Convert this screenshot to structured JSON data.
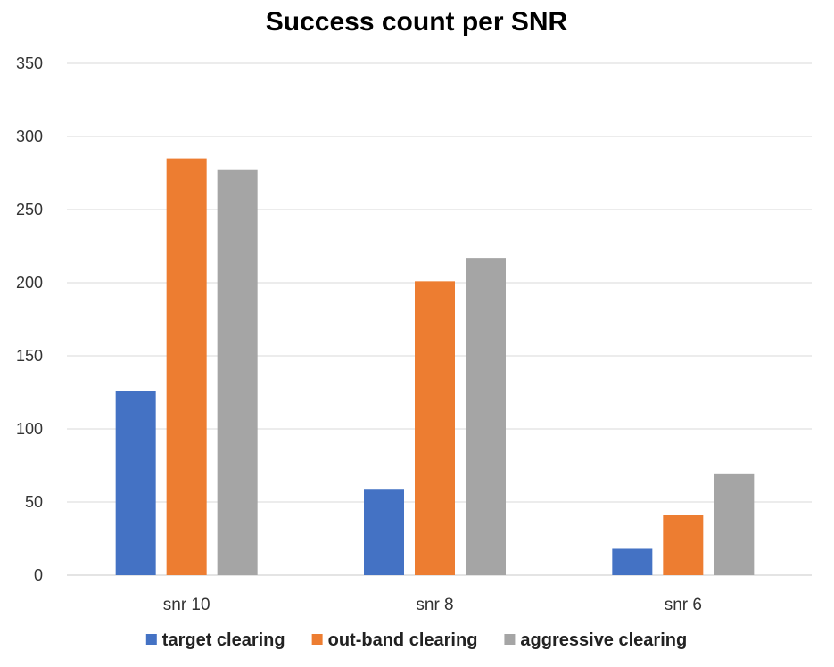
{
  "chart_data": {
    "type": "bar",
    "title": "Success count per SNR",
    "xlabel": "",
    "ylabel": "",
    "categories": [
      "snr 10",
      "snr 8",
      "snr 6"
    ],
    "series": [
      {
        "name": "target clearing",
        "values": [
          126,
          59,
          18
        ],
        "color": "#4472C4"
      },
      {
        "name": "out-band clearing",
        "values": [
          285,
          201,
          41
        ],
        "color": "#ED7D31"
      },
      {
        "name": "aggressive clearing",
        "values": [
          277,
          217,
          69
        ],
        "color": "#A5A5A5"
      }
    ],
    "ylim": [
      0,
      350
    ],
    "yticks": [
      "0",
      "50",
      "100",
      "150",
      "200",
      "250",
      "300",
      "350"
    ],
    "grid": true,
    "legend_position": "bottom"
  }
}
